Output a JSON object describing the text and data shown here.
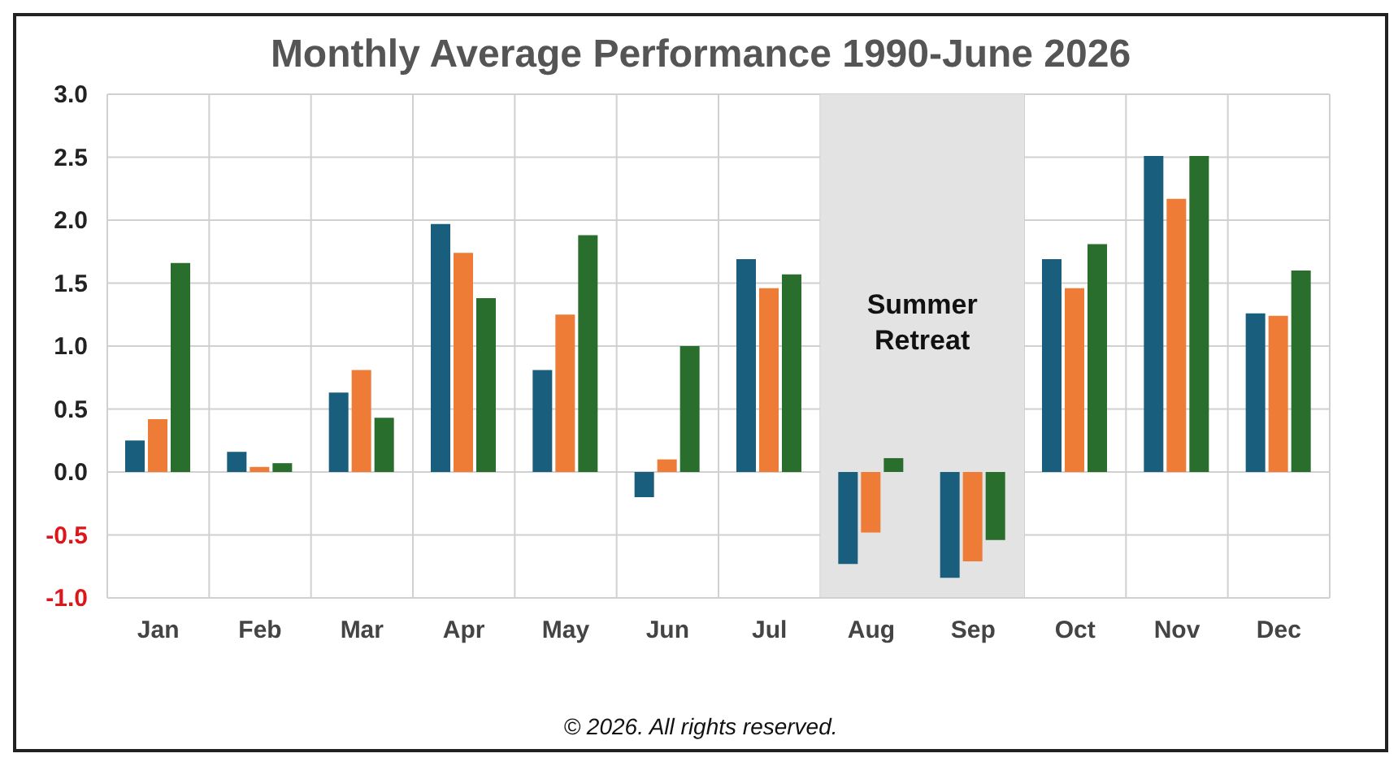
{
  "chart_data": {
    "type": "bar",
    "title": "Monthly Average Performance 1990-June 2026",
    "categories": [
      "Jan",
      "Feb",
      "Mar",
      "Apr",
      "May",
      "Jun",
      "Jul",
      "Aug",
      "Sep",
      "Oct",
      "Nov",
      "Dec"
    ],
    "series": [
      {
        "color": "#1a5e7e",
        "values": [
          0.25,
          0.16,
          0.63,
          1.97,
          0.81,
          -0.2,
          1.69,
          -0.73,
          -0.84,
          1.69,
          2.51,
          1.26
        ]
      },
      {
        "color": "#ee7b36",
        "values": [
          0.42,
          0.04,
          0.81,
          1.74,
          1.25,
          0.1,
          1.46,
          -0.48,
          -0.71,
          1.46,
          2.17,
          1.24
        ]
      },
      {
        "color": "#2a6e2e",
        "values": [
          1.66,
          0.07,
          0.43,
          1.38,
          1.88,
          1.0,
          1.57,
          0.11,
          -0.54,
          1.81,
          2.51,
          1.6
        ]
      }
    ],
    "ylim": [
      -1,
      3
    ],
    "yticks": [
      {
        "value": -1,
        "label": "-1.0"
      },
      {
        "value": -0.5,
        "label": "-0.5"
      },
      {
        "value": 0,
        "label": "0.0"
      },
      {
        "value": 0.5,
        "label": "0.5"
      },
      {
        "value": 1,
        "label": "1.0"
      },
      {
        "value": 1.5,
        "label": "1.5"
      },
      {
        "value": 2,
        "label": "2.0"
      },
      {
        "value": 2.5,
        "label": "2.5"
      },
      {
        "value": 3,
        "label": "3.0"
      }
    ],
    "grid": true,
    "bands": [
      {
        "axis": "x",
        "from": "Aug",
        "to": "Sep",
        "label": "Summer Retreat",
        "color": "#e3e3e3"
      }
    ],
    "annotations": [
      "© 2026. All rights reserved."
    ]
  }
}
